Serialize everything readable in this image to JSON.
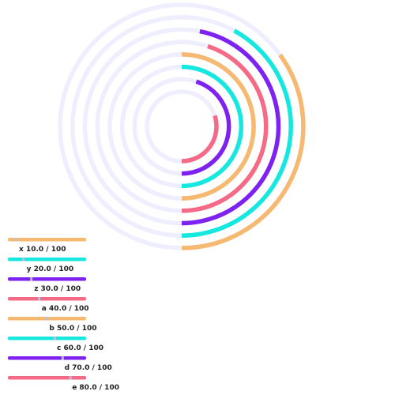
{
  "chart_data": {
    "type": "radial-bar",
    "title": "",
    "max": 100,
    "series": [
      {
        "name": "x",
        "value": 10.0,
        "color": "#f5b971",
        "label": "x 10.0 / 100"
      },
      {
        "name": "y",
        "value": 20.0,
        "color": "#16e8e0",
        "label": "y 20.0 / 100"
      },
      {
        "name": "z",
        "value": 30.0,
        "color": "#7d22f0",
        "label": "z 30.0 / 100"
      },
      {
        "name": "a",
        "value": 40.0,
        "color": "#f56a86",
        "label": "a 40.0 / 100"
      },
      {
        "name": "b",
        "value": 50.0,
        "color": "#f5b971",
        "label": "b 50.0 / 100"
      },
      {
        "name": "c",
        "value": 60.0,
        "color": "#16e8e0",
        "label": "c 60.0 / 100"
      },
      {
        "name": "d",
        "value": 70.0,
        "color": "#7d22f0",
        "label": "d 70.0 / 100"
      },
      {
        "name": "e",
        "value": 80.0,
        "color": "#f56a86",
        "label": "e 80.0 / 100"
      }
    ],
    "background_track_color": "#eeeeff",
    "rings": [
      {
        "series": "a",
        "value": 30.0,
        "color": "#f56a86"
      },
      {
        "series": "z",
        "value": 45.0,
        "color": "#7d22f0"
      },
      {
        "series": "c",
        "value": 50.0,
        "color": "#16e8e0"
      },
      {
        "series": "x",
        "value": 50.0,
        "color": "#f5b971"
      },
      {
        "series": "e",
        "value": 45.0,
        "color": "#f56a86"
      },
      {
        "series": "d",
        "value": 47.0,
        "color": "#7d22f0"
      },
      {
        "series": "y",
        "value": 42.0,
        "color": "#16e8e0"
      },
      {
        "series": "b",
        "value": 35.0,
        "color": "#f5b971"
      }
    ]
  }
}
